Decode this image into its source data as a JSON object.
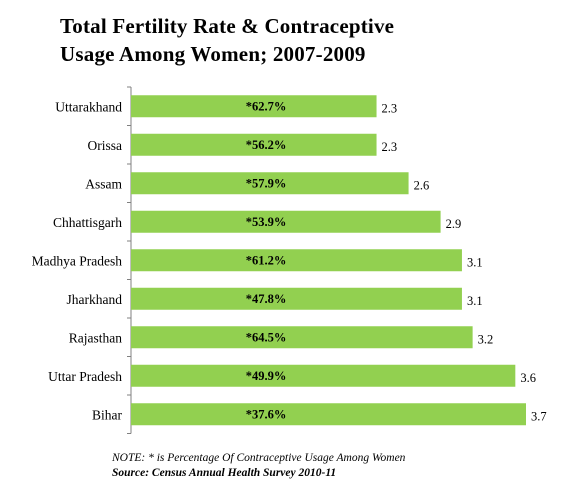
{
  "chart_data": {
    "type": "bar",
    "orientation": "horizontal",
    "title_line1": "Total Fertility Rate & Contraceptive",
    "title_line2": "Usage Among Women; 2007-2009",
    "categories": [
      "Uttarakhand",
      "Orissa",
      "Assam",
      "Chhattisgarh",
      "Madhya Pradesh",
      "Jharkhand",
      "Rajasthan",
      "Uttar Pradesh",
      "Bihar"
    ],
    "values": [
      2.3,
      2.3,
      2.6,
      2.9,
      3.1,
      3.1,
      3.2,
      3.6,
      3.7
    ],
    "value_labels": [
      "2.3",
      "2.3",
      "2.6",
      "2.9",
      "3.1",
      "3.1",
      "3.2",
      "3.6",
      "3.7"
    ],
    "contraceptive_labels": [
      "*62.7%",
      "*56.2%",
      "*57.9%",
      "*53.9%",
      "*61.2%",
      "*47.8%",
      "*64.5%",
      "*49.9%",
      "*37.6%"
    ],
    "xlim": [
      0,
      3.7
    ],
    "bar_color": "#92d050",
    "grid": false,
    "legend": "none"
  },
  "note": "NOTE: * is Percentage Of Contraceptive Usage Among Women",
  "source": "Source: Census Annual Health Survey 2010-11"
}
